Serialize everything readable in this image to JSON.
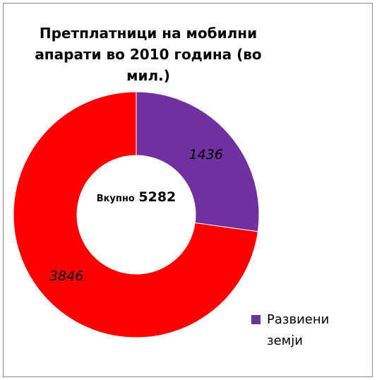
{
  "chart_data": {
    "type": "pie",
    "title": "Претплатници на мобилни апарати во 2010 година (во мил.)",
    "center_label": {
      "prefix": "Вкупно",
      "total": "5282"
    },
    "slices": [
      {
        "name": "Развиени земји",
        "value": 1436,
        "label": "1436",
        "color": "#7030a0"
      },
      {
        "name": "",
        "value": 3846,
        "label": "3846",
        "color": "#ff0000"
      }
    ],
    "legend": {
      "placement": "bottom-right",
      "entries": [
        "Развиени земји"
      ]
    },
    "donut": true
  }
}
